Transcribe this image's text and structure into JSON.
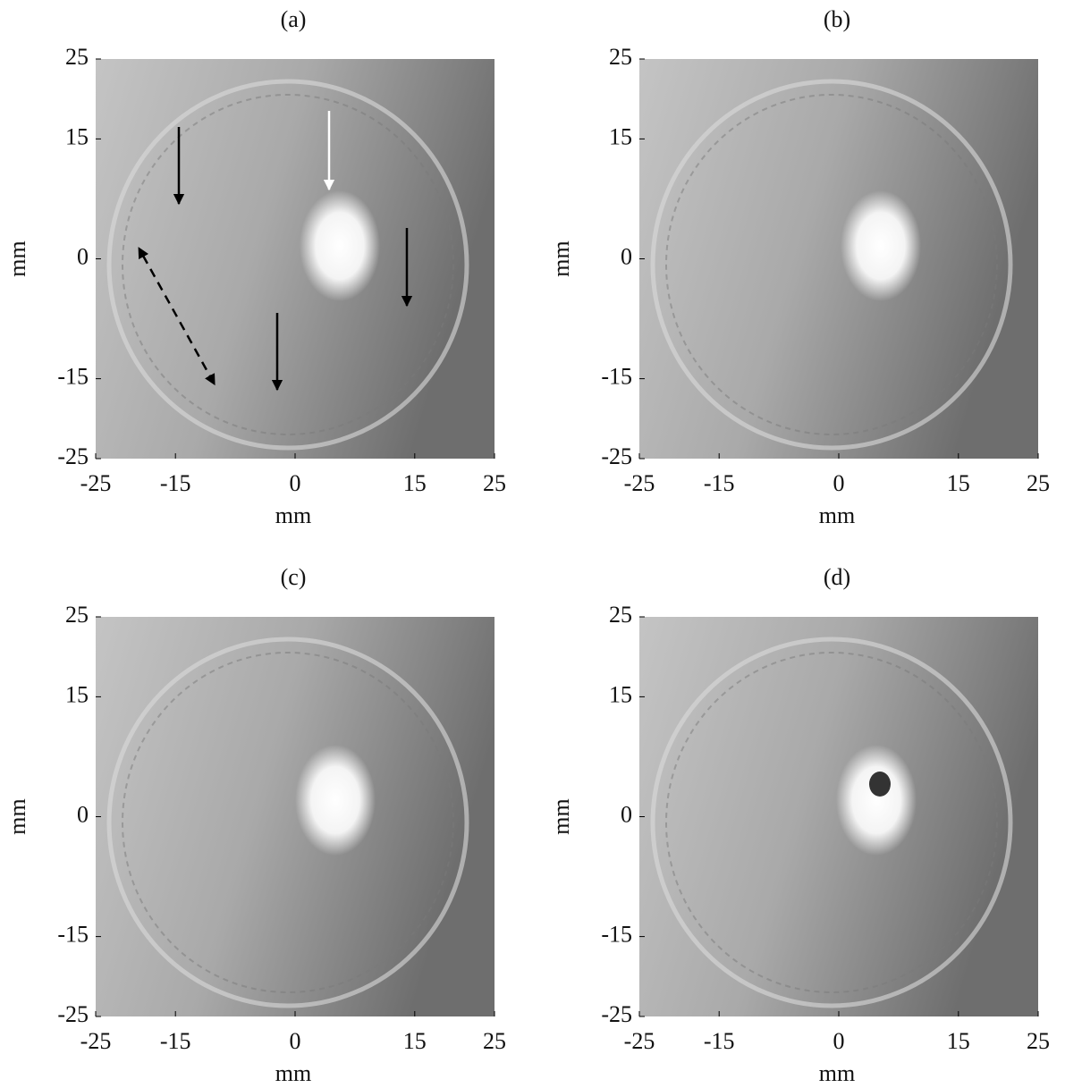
{
  "panels": [
    {
      "label": "(a)",
      "xlabel": "mm",
      "ylabel": "mm",
      "xlim": [
        -25,
        25
      ],
      "ylim": [
        -25,
        25
      ],
      "xticks": [
        -25,
        -15,
        0,
        15,
        25
      ],
      "yticks": [
        -25,
        -15,
        0,
        15,
        25
      ]
    },
    {
      "label": "(b)",
      "xlabel": "mm",
      "ylabel": "mm",
      "xlim": [
        -25,
        25
      ],
      "ylim": [
        -25,
        25
      ],
      "xticks": [
        -25,
        -15,
        0,
        15,
        25
      ],
      "yticks": [
        -25,
        -15,
        0,
        15,
        25
      ]
    },
    {
      "label": "(c)",
      "xlabel": "mm",
      "ylabel": "mm",
      "xlim": [
        -25,
        25
      ],
      "ylim": [
        -25,
        25
      ],
      "xticks": [
        -25,
        -15,
        0,
        15,
        25
      ],
      "yticks": [
        -25,
        -15,
        0,
        15,
        25
      ]
    },
    {
      "label": "(d)",
      "xlabel": "mm",
      "ylabel": "mm",
      "xlim": [
        -25,
        25
      ],
      "ylim": [
        -25,
        25
      ],
      "xticks": [
        -25,
        -15,
        0,
        15,
        25
      ],
      "yticks": [
        -25,
        -15,
        0,
        15,
        25
      ]
    }
  ]
}
